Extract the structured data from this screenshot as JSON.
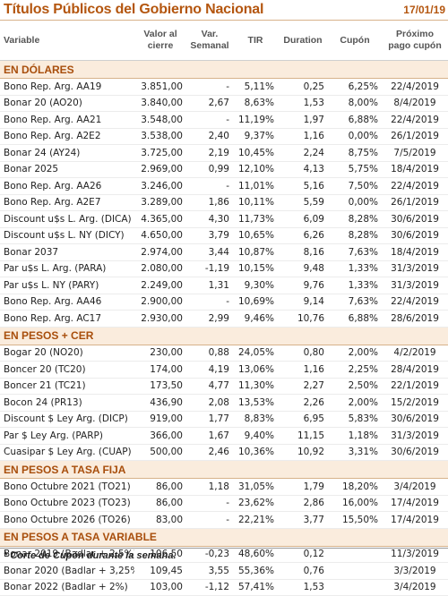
{
  "header": {
    "title": "Títulos Públicos del Gobierno Nacional",
    "date": "17/01/19"
  },
  "columns": [
    {
      "l1": "Variable",
      "l2": ""
    },
    {
      "l1": "Valor al",
      "l2": "cierre"
    },
    {
      "l1": "Var.",
      "l2": "Semanal"
    },
    {
      "l1": "TIR",
      "l2": ""
    },
    {
      "l1": "Duration",
      "l2": ""
    },
    {
      "l1": "Cupón",
      "l2": ""
    },
    {
      "l1": "Próximo",
      "l2": "pago cupón"
    }
  ],
  "sections": [
    {
      "title": "EN DÓLARES",
      "rows": [
        [
          "Bono Rep. Arg. AA19",
          "3.851,00",
          "-",
          "5,11%",
          "0,25",
          "6,25%",
          "22/4/2019"
        ],
        [
          "Bonar 20 (AO20)",
          "3.840,00",
          "2,67",
          "8,63%",
          "1,53",
          "8,00%",
          "8/4/2019"
        ],
        [
          "Bono Rep. Arg. AA21",
          "3.548,00",
          "-",
          "11,19%",
          "1,97",
          "6,88%",
          "22/4/2019"
        ],
        [
          "Bono Rep. Arg. A2E2",
          "3.538,00",
          "2,40",
          "9,37%",
          "1,16",
          "0,00%",
          "26/1/2019"
        ],
        [
          "Bonar 24 (AY24)",
          "3.725,00",
          "2,19",
          "10,45%",
          "2,24",
          "8,75%",
          "7/5/2019"
        ],
        [
          "Bonar 2025",
          "2.969,00",
          "0,99",
          "12,10%",
          "4,13",
          "5,75%",
          "18/4/2019"
        ],
        [
          "Bono Rep. Arg. AA26",
          "3.246,00",
          "-",
          "11,01%",
          "5,16",
          "7,50%",
          "22/4/2019"
        ],
        [
          "Bono Rep. Arg. A2E7",
          "3.289,00",
          "1,86",
          "10,11%",
          "5,59",
          "0,00%",
          "26/1/2019"
        ],
        [
          "Discount u$s L. Arg. (DICA)",
          "4.365,00",
          "4,30",
          "11,73%",
          "6,09",
          "8,28%",
          "30/6/2019"
        ],
        [
          "Discount u$s L. NY (DICY)",
          "4.650,00",
          "3,79",
          "10,65%",
          "6,26",
          "8,28%",
          "30/6/2019"
        ],
        [
          "Bonar 2037",
          "2.974,00",
          "3,44",
          "10,87%",
          "8,16",
          "7,63%",
          "18/4/2019"
        ],
        [
          "Par u$s L. Arg. (PARA)",
          "2.080,00",
          "-1,19",
          "10,15%",
          "9,48",
          "1,33%",
          "31/3/2019"
        ],
        [
          "Par u$s L. NY (PARY)",
          "2.249,00",
          "1,31",
          "9,30%",
          "9,76",
          "1,33%",
          "31/3/2019"
        ],
        [
          "Bono Rep. Arg. AA46",
          "2.900,00",
          "-",
          "10,69%",
          "9,14",
          "7,63%",
          "22/4/2019"
        ],
        [
          "Bono Rep. Arg. AC17",
          "2.930,00",
          "2,99",
          "9,46%",
          "10,76",
          "6,88%",
          "28/6/2019"
        ]
      ]
    },
    {
      "title": "EN PESOS + CER",
      "rows": [
        [
          "Bogar 20 (NO20)",
          "230,00",
          "0,88",
          "24,05%",
          "0,80",
          "2,00%",
          "4/2/2019"
        ],
        [
          "Boncer 20 (TC20)",
          "174,00",
          "4,19",
          "13,06%",
          "1,16",
          "2,25%",
          "28/4/2019"
        ],
        [
          "Boncer 21 (TC21)",
          "173,50",
          "4,77",
          "11,30%",
          "2,27",
          "2,50%",
          "22/1/2019"
        ],
        [
          "Bocon 24 (PR13)",
          "436,90",
          "2,08",
          "13,53%",
          "2,26",
          "2,00%",
          "15/2/2019"
        ],
        [
          "Discount $ Ley Arg. (DICP)",
          "919,00",
          "1,77",
          "8,83%",
          "6,95",
          "5,83%",
          "30/6/2019"
        ],
        [
          "Par $ Ley Arg. (PARP)",
          "366,00",
          "1,67",
          "9,40%",
          "11,15",
          "1,18%",
          "31/3/2019"
        ],
        [
          "Cuasipar $ Ley Arg. (CUAP)",
          "500,00",
          "2,46",
          "10,36%",
          "10,92",
          "3,31%",
          "30/6/2019"
        ]
      ]
    },
    {
      "title": "EN PESOS A TASA FIJA",
      "rows": [
        [
          "Bono Octubre 2021 (TO21)",
          "86,00",
          "1,18",
          "31,05%",
          "1,79",
          "18,20%",
          "3/4/2019"
        ],
        [
          "Bono Octubre 2023 (TO23)",
          "86,00",
          "-",
          "23,62%",
          "2,86",
          "16,00%",
          "17/4/2019"
        ],
        [
          "Bono Octubre 2026 (TO26)",
          "83,00",
          "-",
          "22,21%",
          "3,77",
          "15,50%",
          "17/4/2019"
        ]
      ]
    },
    {
      "title": "EN PESOS A TASA VARIABLE",
      "rows": [
        [
          "Bonar 2019 (Badlar + 2,5%)",
          "106,50",
          "-0,23",
          "48,60%",
          "0,12",
          "",
          "11/3/2019"
        ],
        [
          "Bonar 2020 (Badlar + 3,25%",
          "109,45",
          "3,55",
          "55,36%",
          "0,76",
          "",
          "3/3/2019"
        ],
        [
          "Bonar 2022 (Badlar + 2%)",
          "103,00",
          "-1,12",
          "57,41%",
          "1,53",
          "",
          "3/4/2019"
        ]
      ]
    }
  ],
  "footnote": "* Corte de Cupón durante la semana."
}
